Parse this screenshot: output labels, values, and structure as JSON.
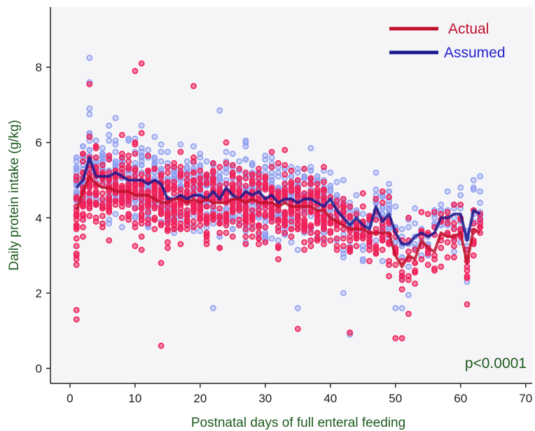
{
  "chart_data": {
    "type": "scatter",
    "xlabel": "Postnatal days of full enteral feeding",
    "ylabel": "Daily protein intake (g/kg)",
    "xlim": [
      -3,
      71
    ],
    "ylim": [
      -0.4,
      9.6
    ],
    "xticks": [
      0,
      10,
      20,
      30,
      40,
      50,
      60,
      70
    ],
    "yticks": [
      0,
      2,
      4,
      6,
      8
    ],
    "annotation": "p<0.0001",
    "legend_position": "top-right",
    "grid": false,
    "series": [
      {
        "name": "Actual",
        "color": "#c0102a",
        "point_color": "#f0205a",
        "mean_line": [
          [
            1,
            4.2
          ],
          [
            2,
            4.7
          ],
          [
            3,
            5.1
          ],
          [
            4,
            4.9
          ],
          [
            5,
            4.8
          ],
          [
            6,
            4.8
          ],
          [
            7,
            4.7
          ],
          [
            8,
            4.7
          ],
          [
            9,
            4.7
          ],
          [
            10,
            4.6
          ],
          [
            11,
            4.6
          ],
          [
            12,
            4.6
          ],
          [
            13,
            4.5
          ],
          [
            14,
            4.4
          ],
          [
            15,
            4.4
          ],
          [
            16,
            4.5
          ],
          [
            17,
            4.5
          ],
          [
            18,
            4.4
          ],
          [
            19,
            4.5
          ],
          [
            20,
            4.4
          ],
          [
            21,
            4.5
          ],
          [
            22,
            4.4
          ],
          [
            23,
            4.4
          ],
          [
            24,
            4.4
          ],
          [
            25,
            4.5
          ],
          [
            26,
            4.5
          ],
          [
            27,
            4.4
          ],
          [
            28,
            4.5
          ],
          [
            29,
            4.4
          ],
          [
            30,
            4.4
          ],
          [
            31,
            4.4
          ],
          [
            32,
            4.3
          ],
          [
            33,
            4.4
          ],
          [
            34,
            4.3
          ],
          [
            35,
            4.3
          ],
          [
            36,
            4.3
          ],
          [
            37,
            4.3
          ],
          [
            38,
            4.2
          ],
          [
            39,
            4.2
          ],
          [
            40,
            4.0
          ],
          [
            41,
            3.9
          ],
          [
            42,
            3.8
          ],
          [
            43,
            3.7
          ],
          [
            44,
            3.7
          ],
          [
            45,
            3.7
          ],
          [
            46,
            3.6
          ],
          [
            47,
            3.6
          ],
          [
            48,
            3.6
          ],
          [
            49,
            3.6
          ],
          [
            50,
            3.0
          ],
          [
            51,
            2.7
          ],
          [
            52,
            3.0
          ],
          [
            53,
            2.9
          ],
          [
            54,
            3.4
          ],
          [
            55,
            3.2
          ],
          [
            56,
            3.1
          ],
          [
            57,
            3.6
          ],
          [
            58,
            3.5
          ],
          [
            59,
            3.5
          ],
          [
            60,
            3.6
          ],
          [
            61,
            2.8
          ],
          [
            62,
            3.7
          ],
          [
            63,
            3.6
          ]
        ]
      },
      {
        "name": "Assumed",
        "color": "#1a1a8c",
        "point_color": "#8f9ff0",
        "mean_line": [
          [
            1,
            4.8
          ],
          [
            2,
            5.0
          ],
          [
            3,
            5.6
          ],
          [
            4,
            5.1
          ],
          [
            5,
            5.1
          ],
          [
            6,
            5.1
          ],
          [
            7,
            5.2
          ],
          [
            8,
            5.1
          ],
          [
            9,
            5.0
          ],
          [
            10,
            5.0
          ],
          [
            11,
            5.0
          ],
          [
            12,
            4.9
          ],
          [
            13,
            5.0
          ],
          [
            14,
            4.9
          ],
          [
            15,
            4.5
          ],
          [
            16,
            4.5
          ],
          [
            17,
            4.6
          ],
          [
            18,
            4.5
          ],
          [
            19,
            4.6
          ],
          [
            20,
            4.6
          ],
          [
            21,
            4.5
          ],
          [
            22,
            4.7
          ],
          [
            23,
            4.5
          ],
          [
            24,
            4.8
          ],
          [
            25,
            4.6
          ],
          [
            26,
            4.5
          ],
          [
            27,
            4.7
          ],
          [
            28,
            4.6
          ],
          [
            29,
            4.7
          ],
          [
            30,
            4.5
          ],
          [
            31,
            4.6
          ],
          [
            32,
            4.4
          ],
          [
            33,
            4.5
          ],
          [
            34,
            4.5
          ],
          [
            35,
            4.4
          ],
          [
            36,
            4.5
          ],
          [
            37,
            4.5
          ],
          [
            38,
            4.4
          ],
          [
            39,
            4.3
          ],
          [
            40,
            4.5
          ],
          [
            41,
            4.2
          ],
          [
            42,
            4.0
          ],
          [
            43,
            3.8
          ],
          [
            44,
            4.0
          ],
          [
            45,
            3.8
          ],
          [
            46,
            3.7
          ],
          [
            47,
            4.3
          ],
          [
            48,
            3.9
          ],
          [
            49,
            4.1
          ],
          [
            50,
            3.6
          ],
          [
            51,
            3.3
          ],
          [
            52,
            3.3
          ],
          [
            53,
            3.5
          ],
          [
            54,
            3.6
          ],
          [
            55,
            3.5
          ],
          [
            56,
            3.6
          ],
          [
            57,
            4.0
          ],
          [
            58,
            4.0
          ],
          [
            59,
            4.1
          ],
          [
            60,
            4.1
          ],
          [
            61,
            3.4
          ],
          [
            62,
            4.2
          ],
          [
            63,
            4.1
          ]
        ]
      }
    ],
    "outlier_points": {
      "Actual": [
        [
          3,
          7.55
        ],
        [
          10,
          7.9
        ],
        [
          11,
          8.1
        ],
        [
          19,
          7.5
        ],
        [
          14,
          0.6
        ],
        [
          35,
          1.05
        ],
        [
          43,
          0.95
        ],
        [
          50,
          0.8
        ],
        [
          51,
          0.8
        ],
        [
          61,
          1.7
        ],
        [
          1,
          1.3
        ],
        [
          1,
          1.55
        ],
        [
          52,
          1.45
        ]
      ],
      "Assumed": [
        [
          3,
          8.25
        ],
        [
          3,
          7.6
        ],
        [
          23,
          6.85
        ],
        [
          22,
          1.6
        ],
        [
          35,
          1.6
        ],
        [
          43,
          0.9
        ],
        [
          50,
          1.6
        ],
        [
          51,
          1.6
        ],
        [
          61,
          2.3
        ],
        [
          42,
          2.0
        ]
      ]
    }
  },
  "legend": {
    "actual_label": "Actual",
    "assumed_label": "Assumed",
    "actual_color": "#c0102a",
    "assumed_color": "#1a1a8c",
    "actual_text_color": "#c0102a",
    "assumed_text_color": "#2222cc"
  },
  "plot_background": "#f5f5f8"
}
